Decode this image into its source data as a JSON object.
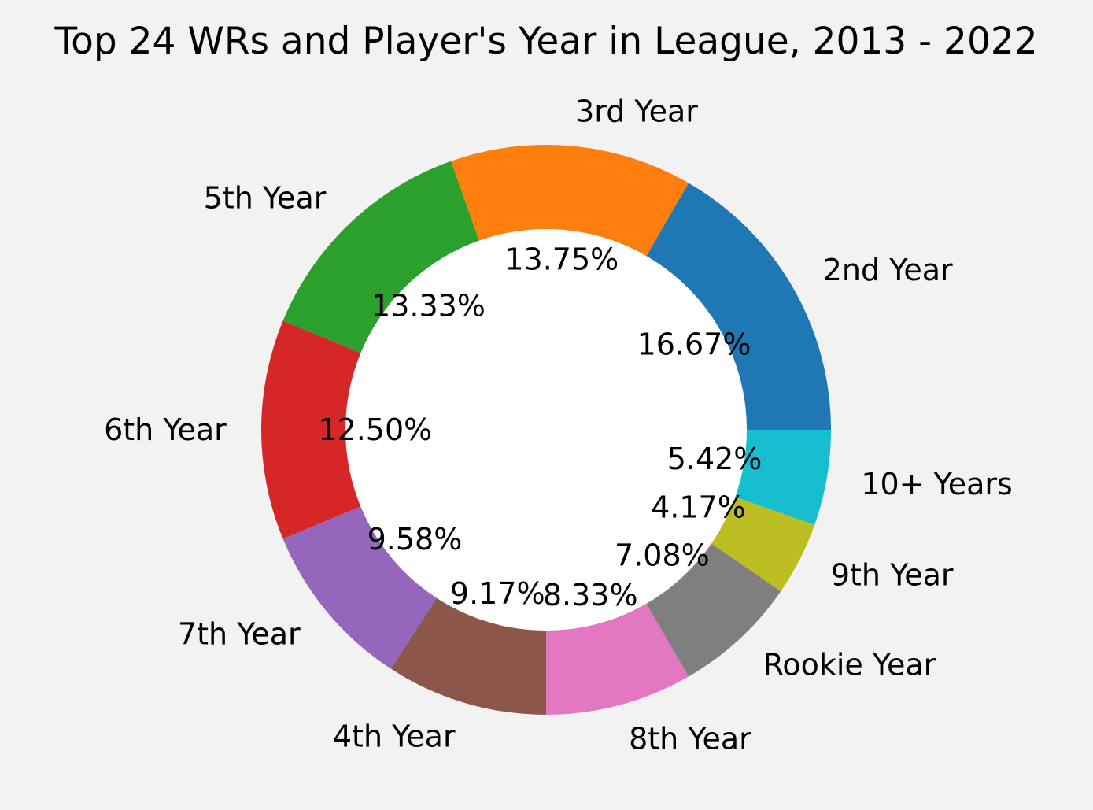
{
  "chart_data": {
    "type": "pie",
    "title": "Top 24 WRs and Player's Year in League, 2013 - 2022",
    "donut": true,
    "legend": "none",
    "slices": [
      {
        "label": "2nd Year",
        "value": 16.67,
        "pct_label": "16.67%",
        "color": "#1f77b4"
      },
      {
        "label": "3rd Year",
        "value": 13.75,
        "pct_label": "13.75%",
        "color": "#ff7f0e"
      },
      {
        "label": "5th Year",
        "value": 13.33,
        "pct_label": "13.33%",
        "color": "#2ca02c"
      },
      {
        "label": "6th Year",
        "value": 12.5,
        "pct_label": "12.50%",
        "color": "#d62728"
      },
      {
        "label": "7th Year",
        "value": 9.58,
        "pct_label": "9.58%",
        "color": "#9467bd"
      },
      {
        "label": "4th Year",
        "value": 9.17,
        "pct_label": "9.17%",
        "color": "#8c564b"
      },
      {
        "label": "8th Year",
        "value": 8.33,
        "pct_label": "8.33%",
        "color": "#e377c2"
      },
      {
        "label": "Rookie Year",
        "value": 7.08,
        "pct_label": "7.08%",
        "color": "#7f7f7f"
      },
      {
        "label": "9th Year",
        "value": 4.17,
        "pct_label": "4.17%",
        "color": "#bcbd22"
      },
      {
        "label": "10+ Years",
        "value": 5.42,
        "pct_label": "5.42%",
        "color": "#17becf"
      }
    ]
  }
}
